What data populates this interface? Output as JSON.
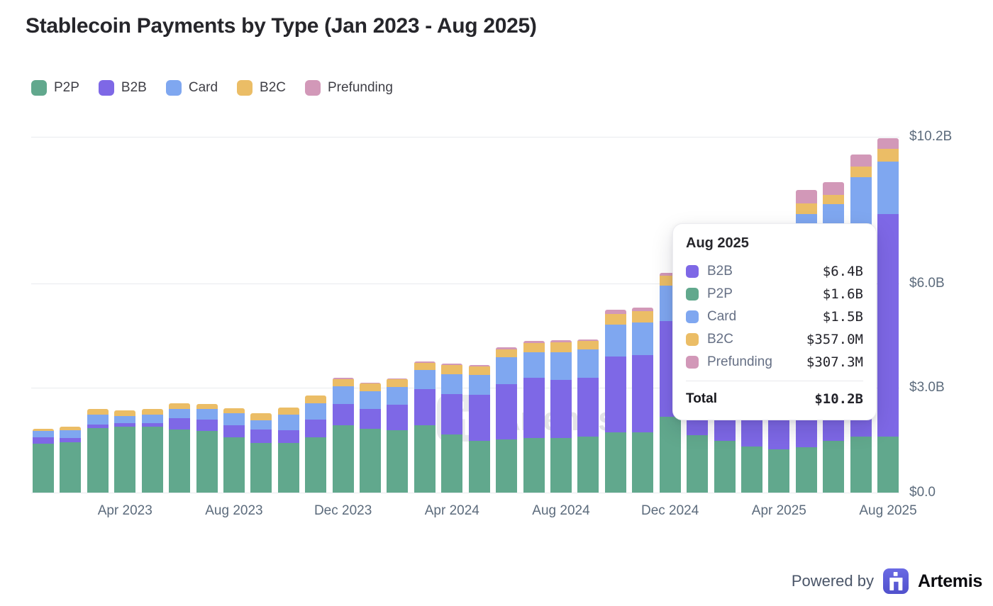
{
  "title": "Stablecoin Payments by Type (Jan 2023 - Aug 2025)",
  "chart_data": {
    "type": "bar",
    "stacked": true,
    "title": "Stablecoin Payments by Type (Jan 2023 - Aug 2025)",
    "unit": "$B",
    "ylim": [
      0,
      10.4
    ],
    "grid": "horizontal",
    "legend_position": "top-left",
    "categories": [
      "Jan 2023",
      "Feb 2023",
      "Mar 2023",
      "Apr 2023",
      "May 2023",
      "Jun 2023",
      "Jul 2023",
      "Aug 2023",
      "Sep 2023",
      "Oct 2023",
      "Nov 2023",
      "Dec 2023",
      "Jan 2024",
      "Feb 2024",
      "Mar 2024",
      "Apr 2024",
      "May 2024",
      "Jun 2024",
      "Jul 2024",
      "Aug 2024",
      "Sep 2024",
      "Oct 2024",
      "Nov 2024",
      "Dec 2024",
      "Jan 2025",
      "Feb 2025",
      "Mar 2025",
      "Apr 2025",
      "May 2025",
      "Jun 2025",
      "Jul 2025",
      "Aug 2025"
    ],
    "series": [
      {
        "name": "P2P",
        "color": "#61A88D",
        "values": [
          1.4,
          1.45,
          1.86,
          1.89,
          1.89,
          1.82,
          1.76,
          1.59,
          1.42,
          1.42,
          1.59,
          1.94,
          1.82,
          1.79,
          1.94,
          1.67,
          1.48,
          1.52,
          1.56,
          1.56,
          1.6,
          1.72,
          1.72,
          2.17,
          1.65,
          1.48,
          1.32,
          1.24,
          1.3,
          1.48,
          1.61,
          1.6
        ]
      },
      {
        "name": "B2B",
        "color": "#7E68E6",
        "values": [
          0.18,
          0.12,
          0.1,
          0.1,
          0.1,
          0.32,
          0.34,
          0.34,
          0.39,
          0.37,
          0.51,
          0.61,
          0.58,
          0.73,
          1.03,
          1.15,
          1.32,
          1.59,
          1.73,
          1.68,
          1.7,
          2.19,
          2.22,
          2.76,
          3.55,
          3.95,
          4.35,
          4.65,
          5.43,
          5.45,
          6.02,
          6.4
        ]
      },
      {
        "name": "Card",
        "color": "#7FA7F0",
        "values": [
          0.19,
          0.22,
          0.27,
          0.2,
          0.24,
          0.27,
          0.29,
          0.34,
          0.27,
          0.44,
          0.47,
          0.51,
          0.51,
          0.52,
          0.54,
          0.58,
          0.58,
          0.78,
          0.73,
          0.79,
          0.8,
          0.91,
          0.95,
          1.0,
          1.1,
          1.15,
          1.2,
          1.25,
          1.26,
          1.35,
          1.42,
          1.5
        ]
      },
      {
        "name": "B2C",
        "color": "#EBBD66",
        "values": [
          0.06,
          0.1,
          0.16,
          0.17,
          0.17,
          0.16,
          0.16,
          0.15,
          0.19,
          0.22,
          0.22,
          0.2,
          0.22,
          0.21,
          0.22,
          0.27,
          0.24,
          0.22,
          0.28,
          0.29,
          0.25,
          0.3,
          0.32,
          0.3,
          0.3,
          0.3,
          0.32,
          0.33,
          0.3,
          0.26,
          0.31,
          0.357
        ]
      },
      {
        "name": "Prefunding",
        "color": "#D298B8",
        "values": [
          0,
          0,
          0,
          0,
          0,
          0,
          0,
          0,
          0,
          0,
          0,
          0.03,
          0.03,
          0.03,
          0.03,
          0.03,
          0.04,
          0.05,
          0.05,
          0.06,
          0.05,
          0.12,
          0.1,
          0.07,
          0.1,
          0.12,
          0.15,
          0.18,
          0.39,
          0.37,
          0.35,
          0.3073
        ]
      }
    ],
    "y_ticks": [
      {
        "label": "$10.2B",
        "value": 10.2
      },
      {
        "label": "$6.0B",
        "value": 6.0
      },
      {
        "label": "$3.0B",
        "value": 3.0
      },
      {
        "label": "$0.0",
        "value": 0
      }
    ],
    "x_tick_indices": [
      3,
      7,
      11,
      15,
      19,
      23,
      27,
      31
    ]
  },
  "tooltip": {
    "header": "Aug 2025",
    "rows": [
      {
        "label": "B2B",
        "value": "$6.4B",
        "color": "#7E68E6"
      },
      {
        "label": "P2P",
        "value": "$1.6B",
        "color": "#61A88D"
      },
      {
        "label": "Card",
        "value": "$1.5B",
        "color": "#7FA7F0"
      },
      {
        "label": "B2C",
        "value": "$357.0M",
        "color": "#EBBD66"
      },
      {
        "label": "Prefunding",
        "value": "$307.3M",
        "color": "#D298B8"
      }
    ],
    "total_label": "Total",
    "total_value": "$10.2B"
  },
  "watermark": {
    "brand": "Artemis"
  },
  "footer": {
    "powered_by": "Powered by",
    "brand": "Artemis"
  },
  "colors": {
    "brand_purple": "#5B5BD7",
    "watermark_gray": "#e9e9ec",
    "gridline": "#e8eaee",
    "axis_label": "#5c6b7c"
  }
}
